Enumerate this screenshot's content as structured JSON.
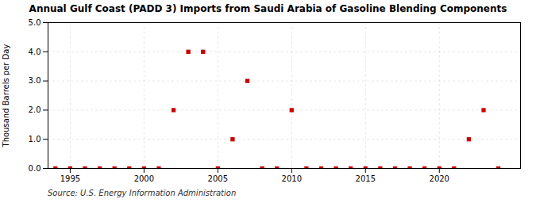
{
  "chart_data": {
    "type": "scatter",
    "title": "Annual Gulf Coast (PADD 3) Imports from Saudi Arabia of Gasoline Blending Components",
    "ylabel": "Thousand Barrels per Day",
    "source": "Source: U.S. Energy Information Administration",
    "x": [
      1994,
      1995,
      1996,
      1997,
      1998,
      1999,
      2000,
      2001,
      2002,
      2003,
      2004,
      2005,
      2006,
      2007,
      2008,
      2009,
      2010,
      2011,
      2012,
      2013,
      2014,
      2015,
      2016,
      2017,
      2018,
      2019,
      2020,
      2021,
      2022,
      2023,
      2024
    ],
    "values": [
      0,
      0,
      0,
      0,
      0,
      0,
      0,
      0,
      2.0,
      4.0,
      4.0,
      0,
      1.0,
      3.0,
      0,
      0,
      2.0,
      0,
      0,
      0,
      0,
      0,
      0,
      0,
      0,
      0,
      0,
      0,
      1.0,
      2.0,
      0
    ],
    "color": "#cc0000",
    "marker": "square",
    "xlim": [
      1993.5,
      2025.5
    ],
    "xticks": [
      1995,
      2000,
      2005,
      2010,
      2015,
      2020
    ],
    "ylim": [
      0,
      5.0
    ],
    "yticks": [
      {
        "value": 0.0,
        "label": "0.0"
      },
      {
        "value": 1.0,
        "label": "1.0"
      },
      {
        "value": 2.0,
        "label": "2.0"
      },
      {
        "value": 3.0,
        "label": "3.0"
      },
      {
        "value": 4.0,
        "label": "4.0"
      },
      {
        "value": 5.0,
        "label": "5.0"
      }
    ],
    "grid": true
  }
}
